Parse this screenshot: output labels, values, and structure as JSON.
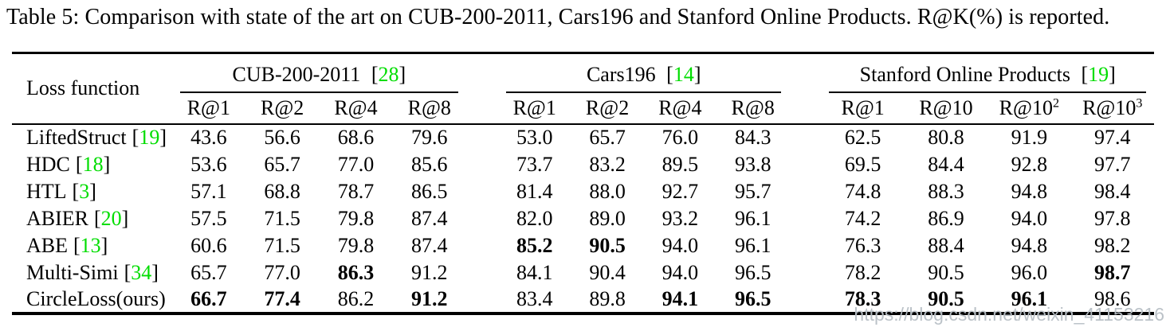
{
  "caption": "Table 5: Comparison with state of the art on CUB-200-2011, Cars196 and Stanford Online Products. R@K(%) is reported.",
  "colors": {
    "citation_green": "#00dd00",
    "text": "#000000",
    "watermark_gray": "#b7bfc5"
  },
  "watermark": "https://blog.csdn.net/weixin_41153216",
  "table": {
    "row_header": "Loss function",
    "citation_brackets": {
      "open": "[",
      "close": "]"
    },
    "groups": [
      {
        "name": "CUB-200-2011",
        "cite": "28",
        "columns": [
          {
            "base": "R@1"
          },
          {
            "base": "R@2"
          },
          {
            "base": "R@4"
          },
          {
            "base": "R@8"
          }
        ]
      },
      {
        "name": "Cars196",
        "cite": "14",
        "columns": [
          {
            "base": "R@1"
          },
          {
            "base": "R@2"
          },
          {
            "base": "R@4"
          },
          {
            "base": "R@8"
          }
        ]
      },
      {
        "name": "Stanford Online Products",
        "cite": "19",
        "columns": [
          {
            "base": "R@1"
          },
          {
            "base": "R@10"
          },
          {
            "base": "R@10",
            "sup": "2"
          },
          {
            "base": "R@10",
            "sup": "3"
          }
        ]
      }
    ],
    "rows": [
      {
        "name": "LiftedStruct",
        "cite": "19",
        "values": [
          "43.6",
          "56.6",
          "68.6",
          "79.6",
          "53.0",
          "65.7",
          "76.0",
          "84.3",
          "62.5",
          "80.8",
          "91.9",
          "97.4"
        ],
        "bold": []
      },
      {
        "name": "HDC",
        "cite": "18",
        "values": [
          "53.6",
          "65.7",
          "77.0",
          "85.6",
          "73.7",
          "83.2",
          "89.5",
          "93.8",
          "69.5",
          "84.4",
          "92.8",
          "97.7"
        ],
        "bold": []
      },
      {
        "name": "HTL",
        "cite": "3",
        "values": [
          "57.1",
          "68.8",
          "78.7",
          "86.5",
          "81.4",
          "88.0",
          "92.7",
          "95.7",
          "74.8",
          "88.3",
          "94.8",
          "98.4"
        ],
        "bold": []
      },
      {
        "name": "ABIER",
        "cite": "20",
        "values": [
          "57.5",
          "71.5",
          "79.8",
          "87.4",
          "82.0",
          "89.0",
          "93.2",
          "96.1",
          "74.2",
          "86.9",
          "94.0",
          "97.8"
        ],
        "bold": []
      },
      {
        "name": "ABE",
        "cite": "13",
        "values": [
          "60.6",
          "71.5",
          "79.8",
          "87.4",
          "85.2",
          "90.5",
          "94.0",
          "96.1",
          "76.3",
          "88.4",
          "94.8",
          "98.2"
        ],
        "bold": [
          4,
          5
        ]
      },
      {
        "name": "Multi-Simi",
        "cite": "34",
        "values": [
          "65.7",
          "77.0",
          "86.3",
          "91.2",
          "84.1",
          "90.4",
          "94.0",
          "96.5",
          "78.2",
          "90.5",
          "96.0",
          "98.7"
        ],
        "bold": [
          2,
          11
        ]
      },
      {
        "name": "CircleLoss(ours)",
        "cite": null,
        "values": [
          "66.7",
          "77.4",
          "86.2",
          "91.2",
          "83.4",
          "89.8",
          "94.1",
          "96.5",
          "78.3",
          "90.5",
          "96.1",
          "98.6"
        ],
        "bold": [
          0,
          1,
          3,
          6,
          7,
          8,
          9,
          10
        ]
      }
    ]
  }
}
